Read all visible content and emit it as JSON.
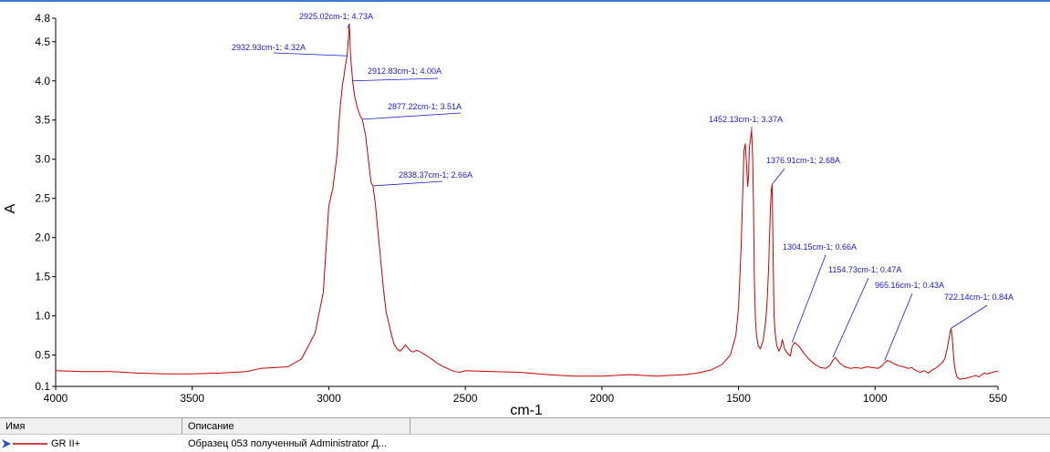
{
  "chart_data": {
    "type": "line",
    "xlabel": "cm-1",
    "ylabel": "A",
    "xlim": [
      4000,
      550
    ],
    "ylim": [
      0.1,
      4.8
    ],
    "x_ticks": [
      4000,
      3500,
      3000,
      2500,
      2000,
      1500,
      1000,
      550
    ],
    "y_ticks": [
      0.1,
      0.5,
      1.0,
      1.5,
      2.0,
      2.5,
      3.0,
      3.5,
      4.0,
      4.5,
      4.8
    ],
    "x_tick_labels": [
      "4000",
      "3500",
      "3000",
      "2500",
      "2000",
      "1500",
      "1000",
      "550"
    ],
    "y_tick_labels": [
      "0.1",
      "0.5",
      "1.0",
      "1.5",
      "2.0",
      "2.5",
      "3.0",
      "3.5",
      "4.0",
      "4.5",
      "4.8"
    ],
    "grid": false,
    "series": [
      {
        "name": "GR II+",
        "color": "#cc0000",
        "x": [
          4000,
          3900,
          3800,
          3700,
          3600,
          3500,
          3400,
          3300,
          3250,
          3200,
          3150,
          3100,
          3050,
          3020,
          3000,
          2985,
          2970,
          2960,
          2950,
          2945,
          2940,
          2935,
          2932.93,
          2928,
          2925.02,
          2920,
          2915,
          2912.83,
          2905,
          2895,
          2885,
          2877.22,
          2865,
          2855,
          2845,
          2838.37,
          2830,
          2815,
          2800,
          2790,
          2780,
          2770,
          2760,
          2750,
          2740,
          2730,
          2720,
          2710,
          2700,
          2690,
          2680,
          2670,
          2660,
          2650,
          2640,
          2620,
          2600,
          2580,
          2560,
          2540,
          2520,
          2500,
          2400,
          2300,
          2200,
          2100,
          2000,
          1900,
          1800,
          1700,
          1650,
          1600,
          1560,
          1530,
          1510,
          1500,
          1490,
          1480,
          1475,
          1470,
          1466,
          1463,
          1460,
          1456,
          1452.13,
          1448,
          1445,
          1442,
          1438,
          1434,
          1428,
          1420,
          1410,
          1400,
          1395,
          1390,
          1386,
          1383,
          1380,
          1376.91,
          1373,
          1370,
          1366,
          1360,
          1352,
          1345,
          1340,
          1335,
          1330,
          1320,
          1310,
          1304.15,
          1295,
          1280,
          1260,
          1240,
          1220,
          1200,
          1180,
          1165,
          1154.73,
          1145,
          1130,
          1110,
          1090,
          1070,
          1050,
          1030,
          1010,
          990,
          975,
          965.16,
          955,
          940,
          925,
          910,
          895,
          880,
          865,
          850,
          835,
          820,
          805,
          795,
          785,
          775,
          765,
          755,
          745,
          740,
          735,
          730,
          726,
          722.14,
          718,
          714,
          710,
          705,
          700,
          690,
          680,
          670,
          660,
          650,
          640,
          630,
          620,
          610,
          600,
          590,
          580,
          570,
          560,
          550
        ],
        "y": [
          0.3,
          0.29,
          0.29,
          0.27,
          0.26,
          0.26,
          0.27,
          0.29,
          0.33,
          0.34,
          0.35,
          0.45,
          0.78,
          1.3,
          2.4,
          2.63,
          3.05,
          3.6,
          3.95,
          4.05,
          4.18,
          4.28,
          4.32,
          4.55,
          4.73,
          4.3,
          4.1,
          4.0,
          3.8,
          3.65,
          3.55,
          3.51,
          3.3,
          3.0,
          2.7,
          2.66,
          2.45,
          1.9,
          1.35,
          1.05,
          0.9,
          0.75,
          0.63,
          0.58,
          0.55,
          0.58,
          0.63,
          0.59,
          0.55,
          0.54,
          0.56,
          0.55,
          0.53,
          0.51,
          0.49,
          0.44,
          0.39,
          0.35,
          0.32,
          0.29,
          0.28,
          0.3,
          0.29,
          0.28,
          0.25,
          0.23,
          0.23,
          0.25,
          0.23,
          0.25,
          0.27,
          0.31,
          0.38,
          0.5,
          0.75,
          1.1,
          1.9,
          3.1,
          3.2,
          2.9,
          2.65,
          2.8,
          3.15,
          3.25,
          3.37,
          3.0,
          2.4,
          1.5,
          0.95,
          0.75,
          0.62,
          0.58,
          0.68,
          0.95,
          1.2,
          1.6,
          2.05,
          2.4,
          2.6,
          2.68,
          1.7,
          1.0,
          0.78,
          0.62,
          0.55,
          0.6,
          0.7,
          0.63,
          0.57,
          0.52,
          0.49,
          0.6,
          0.66,
          0.62,
          0.52,
          0.44,
          0.38,
          0.34,
          0.33,
          0.37,
          0.43,
          0.47,
          0.4,
          0.35,
          0.33,
          0.34,
          0.33,
          0.35,
          0.34,
          0.33,
          0.36,
          0.4,
          0.43,
          0.41,
          0.38,
          0.36,
          0.35,
          0.33,
          0.34,
          0.3,
          0.28,
          0.3,
          0.27,
          0.3,
          0.32,
          0.34,
          0.37,
          0.4,
          0.45,
          0.52,
          0.6,
          0.7,
          0.78,
          0.84,
          0.75,
          0.55,
          0.38,
          0.28,
          0.22,
          0.19,
          0.2,
          0.2,
          0.21,
          0.22,
          0.23,
          0.24,
          0.22,
          0.25,
          0.27,
          0.26,
          0.27,
          0.28,
          0.29,
          0.29
        ]
      }
    ],
    "annotations": [
      {
        "text": "2925.02cm-1; 4.73A",
        "x": 2925.02,
        "y": 4.73
      },
      {
        "text": "2932.93cm-1; 4.32A",
        "x": 2932.93,
        "y": 4.32
      },
      {
        "text": "2912.83cm-1; 4.00A",
        "x": 2912.83,
        "y": 4.0
      },
      {
        "text": "2877.22cm-1; 3.51A",
        "x": 2877.22,
        "y": 3.51
      },
      {
        "text": "2838.37cm-1; 2.66A",
        "x": 2838.37,
        "y": 2.66
      },
      {
        "text": "1452.13cm-1; 3.37A",
        "x": 1452.13,
        "y": 3.37
      },
      {
        "text": "1376.91cm-1; 2.68A",
        "x": 1376.91,
        "y": 2.68
      },
      {
        "text": "1304.15cm-1; 0.66A",
        "x": 1304.15,
        "y": 0.66
      },
      {
        "text": "1154.73cm-1; 0.47A",
        "x": 1154.73,
        "y": 0.47
      },
      {
        "text": "965.16cm-1; 0.43A",
        "x": 965.16,
        "y": 0.43
      },
      {
        "text": "722.14cm-1; 0.84A",
        "x": 722.14,
        "y": 0.84
      }
    ]
  },
  "legend": {
    "col_name": "Имя",
    "col_desc": "Описание",
    "row_name": "GR II+",
    "row_desc": "Образец 053 полученный Administrator Д..."
  }
}
